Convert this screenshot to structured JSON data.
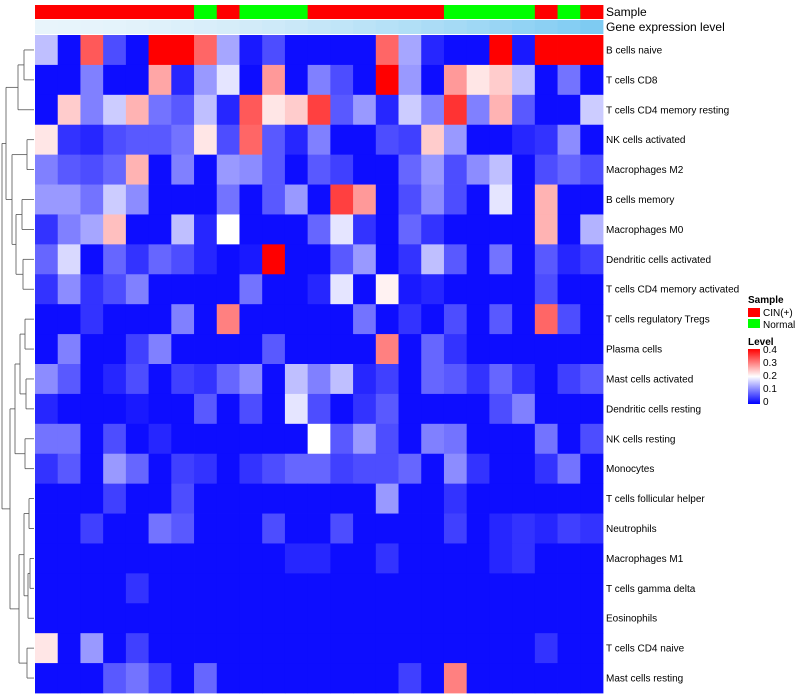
{
  "chart_data": {
    "type": "heatmap",
    "annotation_rows": [
      "Sample",
      "Gene expression level"
    ],
    "sample_groups": [
      "CIN",
      "CIN",
      "CIN",
      "CIN",
      "CIN",
      "CIN",
      "CIN",
      "Normal",
      "CIN",
      "Normal",
      "Normal",
      "Normal",
      "CIN",
      "CIN",
      "CIN",
      "CIN",
      "CIN",
      "CIN",
      "Normal",
      "Normal",
      "Normal",
      "Normal",
      "CIN",
      "Normal",
      "CIN"
    ],
    "rows": [
      {
        "label": "B cells naive",
        "values": [
          0.15,
          0.01,
          0.33,
          0.06,
          0.01,
          0.4,
          0.4,
          0.32,
          0.13,
          0.02,
          0.06,
          0.01,
          0.01,
          0.01,
          0.01,
          0.32,
          0.13,
          0.03,
          0.01,
          0.01,
          0.4,
          0.02,
          0.4,
          0.4,
          0.4
        ]
      },
      {
        "label": "T cells CD8",
        "values": [
          0.01,
          0.01,
          0.1,
          0.01,
          0.01,
          0.27,
          0.03,
          0.12,
          0.18,
          0.01,
          0.28,
          0.01,
          0.1,
          0.06,
          0.01,
          0.4,
          0.12,
          0.01,
          0.28,
          0.22,
          0.24,
          0.15,
          0.01,
          0.09,
          0.01
        ]
      },
      {
        "label": "T cells CD4 memory resting",
        "values": [
          0.01,
          0.24,
          0.1,
          0.16,
          0.26,
          0.09,
          0.07,
          0.15,
          0.03,
          0.33,
          0.22,
          0.24,
          0.35,
          0.07,
          0.12,
          0.03,
          0.16,
          0.1,
          0.36,
          0.1,
          0.26,
          0.07,
          0.01,
          0.01,
          0.16
        ]
      },
      {
        "label": "NK cells activated",
        "values": [
          0.22,
          0.04,
          0.03,
          0.06,
          0.07,
          0.07,
          0.09,
          0.22,
          0.06,
          0.32,
          0.07,
          0.03,
          0.1,
          0.01,
          0.01,
          0.06,
          0.05,
          0.24,
          0.12,
          0.01,
          0.01,
          0.03,
          0.04,
          0.11,
          0.01
        ]
      },
      {
        "label": "Macrophages M2",
        "values": [
          0.1,
          0.07,
          0.06,
          0.08,
          0.26,
          0.01,
          0.1,
          0.01,
          0.12,
          0.11,
          0.07,
          0.01,
          0.07,
          0.05,
          0.01,
          0.01,
          0.08,
          0.12,
          0.06,
          0.11,
          0.15,
          0.01,
          0.06,
          0.08,
          0.06
        ]
      },
      {
        "label": "B cells memory",
        "values": [
          0.12,
          0.12,
          0.09,
          0.16,
          0.11,
          0.01,
          0.01,
          0.01,
          0.09,
          0.01,
          0.07,
          0.12,
          0.01,
          0.35,
          0.28,
          0.01,
          0.06,
          0.11,
          0.06,
          0.01,
          0.18,
          0.01,
          0.26,
          0.01,
          0.01
        ]
      },
      {
        "label": "Macrophages M0",
        "values": [
          0.04,
          0.1,
          0.13,
          0.25,
          0.01,
          0.01,
          0.15,
          0.03,
          0.2,
          0.01,
          0.01,
          0.01,
          0.08,
          0.18,
          0.04,
          0.01,
          0.08,
          0.04,
          0.01,
          0.01,
          0.01,
          0.01,
          0.26,
          0.01,
          0.14
        ]
      },
      {
        "label": "Dendritic cells activated",
        "values": [
          0.08,
          0.17,
          0.01,
          0.08,
          0.04,
          0.08,
          0.06,
          0.03,
          0.01,
          0.02,
          0.4,
          0.01,
          0.01,
          0.07,
          0.12,
          0.01,
          0.04,
          0.15,
          0.07,
          0.01,
          0.09,
          0.01,
          0.07,
          0.03,
          0.05
        ]
      },
      {
        "label": "T cells CD4 memory activated",
        "values": [
          0.04,
          0.11,
          0.04,
          0.06,
          0.1,
          0.01,
          0.01,
          0.01,
          0.01,
          0.09,
          0.01,
          0.01,
          0.03,
          0.18,
          0.01,
          0.21,
          0.02,
          0.03,
          0.01,
          0.01,
          0.01,
          0.01,
          0.06,
          0.01,
          0.01
        ]
      },
      {
        "label": "T cells regulatory  Tregs",
        "values": [
          0.01,
          0.01,
          0.04,
          0.01,
          0.01,
          0.01,
          0.1,
          0.01,
          0.3,
          0.01,
          0.01,
          0.01,
          0.01,
          0.01,
          0.09,
          0.01,
          0.04,
          0.01,
          0.06,
          0.01,
          0.07,
          0.01,
          0.32,
          0.06,
          0.01
        ]
      },
      {
        "label": "Plasma cells",
        "values": [
          0.01,
          0.1,
          0.01,
          0.01,
          0.05,
          0.1,
          0.01,
          0.01,
          0.01,
          0.01,
          0.07,
          0.01,
          0.01,
          0.01,
          0.01,
          0.3,
          0.01,
          0.08,
          0.04,
          0.01,
          0.01,
          0.01,
          0.01,
          0.01,
          0.01
        ]
      },
      {
        "label": "Mast cells activated",
        "values": [
          0.11,
          0.07,
          0.01,
          0.03,
          0.06,
          0.01,
          0.05,
          0.04,
          0.08,
          0.11,
          0.01,
          0.15,
          0.1,
          0.15,
          0.03,
          0.05,
          0.01,
          0.08,
          0.07,
          0.04,
          0.08,
          0.04,
          0.01,
          0.05,
          0.07
        ]
      },
      {
        "label": "Dendritic cells resting",
        "values": [
          0.03,
          0.01,
          0.01,
          0.01,
          0.02,
          0.01,
          0.01,
          0.07,
          0.01,
          0.06,
          0.01,
          0.18,
          0.06,
          0.01,
          0.04,
          0.07,
          0.01,
          0.01,
          0.01,
          0.01,
          0.06,
          0.1,
          0.01,
          0.01,
          0.01
        ]
      },
      {
        "label": "NK cells resting",
        "values": [
          0.09,
          0.09,
          0.01,
          0.06,
          0.01,
          0.03,
          0.01,
          0.01,
          0.01,
          0.01,
          0.01,
          0.01,
          0.2,
          0.07,
          0.12,
          0.06,
          0.01,
          0.1,
          0.09,
          0.01,
          0.01,
          0.01,
          0.09,
          0.01,
          0.06
        ]
      },
      {
        "label": "Monocytes",
        "values": [
          0.04,
          0.07,
          0.01,
          0.12,
          0.08,
          0.01,
          0.05,
          0.04,
          0.01,
          0.04,
          0.06,
          0.08,
          0.08,
          0.05,
          0.06,
          0.06,
          0.08,
          0.01,
          0.11,
          0.04,
          0.01,
          0.01,
          0.04,
          0.09,
          0.01
        ]
      },
      {
        "label": "T cells follicular helper",
        "values": [
          0.01,
          0.01,
          0.01,
          0.05,
          0.01,
          0.01,
          0.06,
          0.01,
          0.01,
          0.01,
          0.01,
          0.01,
          0.01,
          0.01,
          0.01,
          0.12,
          0.01,
          0.01,
          0.04,
          0.01,
          0.01,
          0.01,
          0.01,
          0.01,
          0.01
        ]
      },
      {
        "label": "Neutrophils",
        "values": [
          0.01,
          0.01,
          0.05,
          0.01,
          0.01,
          0.09,
          0.07,
          0.01,
          0.01,
          0.01,
          0.06,
          0.01,
          0.01,
          0.06,
          0.01,
          0.01,
          0.01,
          0.01,
          0.05,
          0.01,
          0.03,
          0.04,
          0.03,
          0.05,
          0.04
        ]
      },
      {
        "label": "Macrophages M1",
        "values": [
          0.01,
          0.01,
          0.01,
          0.01,
          0.01,
          0.01,
          0.01,
          0.01,
          0.01,
          0.01,
          0.01,
          0.03,
          0.03,
          0.01,
          0.01,
          0.04,
          0.01,
          0.01,
          0.01,
          0.01,
          0.03,
          0.04,
          0.01,
          0.01,
          0.01
        ]
      },
      {
        "label": "T cells gamma delta",
        "values": [
          0.01,
          0.01,
          0.01,
          0.01,
          0.04,
          0.01,
          0.01,
          0.01,
          0.01,
          0.01,
          0.01,
          0.01,
          0.01,
          0.01,
          0.01,
          0.01,
          0.01,
          0.01,
          0.01,
          0.01,
          0.01,
          0.01,
          0.01,
          0.01,
          0.01
        ]
      },
      {
        "label": "Eosinophils",
        "values": [
          0.01,
          0.01,
          0.01,
          0.01,
          0.01,
          0.01,
          0.01,
          0.01,
          0.01,
          0.01,
          0.01,
          0.01,
          0.01,
          0.01,
          0.01,
          0.01,
          0.01,
          0.01,
          0.01,
          0.01,
          0.01,
          0.01,
          0.01,
          0.01,
          0.01
        ]
      },
      {
        "label": "T cells CD4 naive",
        "values": [
          0.22,
          0.01,
          0.12,
          0.01,
          0.05,
          0.01,
          0.01,
          0.01,
          0.01,
          0.01,
          0.01,
          0.01,
          0.01,
          0.01,
          0.01,
          0.01,
          0.01,
          0.01,
          0.01,
          0.01,
          0.01,
          0.01,
          0.04,
          0.01,
          0.01
        ]
      },
      {
        "label": "Mast cells resting",
        "values": [
          0.01,
          0.01,
          0.01,
          0.07,
          0.09,
          0.05,
          0.01,
          0.08,
          0.01,
          0.01,
          0.01,
          0.01,
          0.01,
          0.01,
          0.01,
          0.01,
          0.05,
          0.01,
          0.3,
          0.01,
          0.01,
          0.01,
          0.01,
          0.01,
          0.01
        ]
      }
    ],
    "legend": {
      "sample_title": "Sample",
      "sample_items": [
        {
          "label": "CIN(+)",
          "color": "#ff0000"
        },
        {
          "label": "Normal",
          "color": "#00ff00"
        }
      ],
      "level_title": "Level",
      "level_ticks": [
        "0.4",
        "0.3",
        "0.2",
        "0.1",
        "0"
      ],
      "level_range": [
        0,
        0.4
      ]
    },
    "colors": {
      "low": "#0000ff",
      "mid": "#ffffff",
      "high": "#ff0000",
      "cin": "#ff0000",
      "normal": "#00ff00",
      "expression_bar_start": "#e8f4fb",
      "expression_bar_end": "#7ecbf2"
    }
  }
}
